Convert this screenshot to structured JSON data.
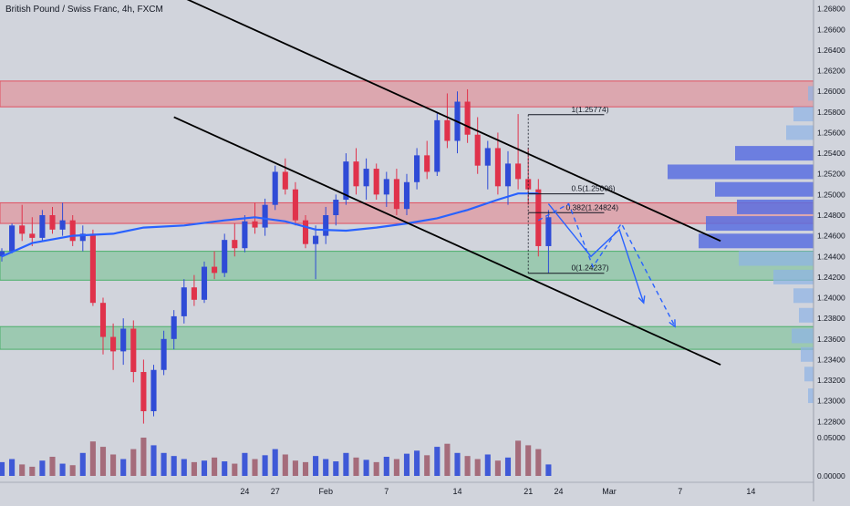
{
  "chart_data": {
    "type": "candlestick",
    "title": "British Pound / Swiss Franc, 4h, FXCM",
    "price_axis": {
      "ylim": [
        1.2275,
        1.2685
      ],
      "ticks": [
        "1.26800",
        "1.26600",
        "1.26400",
        "1.26200",
        "1.26000",
        "1.25800",
        "1.25600",
        "1.25400",
        "1.25200",
        "1.25000",
        "1.24800",
        "1.24600",
        "1.24400",
        "1.24200",
        "1.24000",
        "1.23800",
        "1.23600",
        "1.23400",
        "1.23200",
        "1.23000",
        "1.22800"
      ]
    },
    "volume_axis": {
      "ticks": [
        "0.05000",
        "0.00000"
      ]
    },
    "time_axis": {
      "labels": [
        {
          "t": 24,
          "label": "24"
        },
        {
          "t": 27,
          "label": "27"
        },
        {
          "t": 32,
          "label": "Feb"
        },
        {
          "t": 38,
          "label": "7"
        },
        {
          "t": 45,
          "label": "14"
        },
        {
          "t": 52,
          "label": "21"
        },
        {
          "t": 55,
          "label": "24"
        },
        {
          "t": 60,
          "label": "Mar"
        },
        {
          "t": 67,
          "label": "7"
        },
        {
          "t": 74,
          "label": "14"
        }
      ]
    },
    "zones": [
      {
        "kind": "supply",
        "from": 1.2585,
        "to": 1.261,
        "color": "#e28f96"
      },
      {
        "kind": "supply",
        "from": 1.2472,
        "to": 1.2492,
        "color": "#e28f96"
      },
      {
        "kind": "demand",
        "from": 1.2417,
        "to": 1.2445,
        "color": "#7fc39a"
      },
      {
        "kind": "demand",
        "from": 1.235,
        "to": 1.2372,
        "color": "#7fc39a"
      }
    ],
    "fibonacci": [
      {
        "level": "1",
        "price": 1.25774,
        "label": "1(1.25774)"
      },
      {
        "level": "0.5",
        "price": 1.25006,
        "label": "0.5(1.25006)"
      },
      {
        "level": "0.382",
        "price": 1.24824,
        "label": "0.382(1.24824)"
      },
      {
        "level": "0",
        "price": 1.24237,
        "label": "0(1.24237)"
      }
    ],
    "channel_lines": [
      {
        "t1": 17,
        "p1": 1.2695,
        "t2": 71,
        "p2": 1.2455
      },
      {
        "t1": 17,
        "p1": 1.2575,
        "t2": 71,
        "p2": 1.2335
      }
    ],
    "moving_average": [
      [
        0,
        1.244
      ],
      [
        3,
        1.2453
      ],
      [
        7,
        1.246
      ],
      [
        11,
        1.2462
      ],
      [
        14,
        1.2468
      ],
      [
        18,
        1.247
      ],
      [
        22,
        1.2475
      ],
      [
        25,
        1.2478
      ],
      [
        28,
        1.2474
      ],
      [
        31,
        1.2466
      ],
      [
        34,
        1.2465
      ],
      [
        37,
        1.2468
      ],
      [
        40,
        1.2472
      ],
      [
        43,
        1.2477
      ],
      [
        46,
        1.2485
      ],
      [
        49,
        1.2495
      ],
      [
        51,
        1.2501
      ],
      [
        53,
        1.2501
      ]
    ],
    "projections": [
      {
        "style": "solid",
        "points": [
          [
            54,
            1.2491
          ],
          [
            58.2,
            1.244
          ],
          [
            61,
            1.2466
          ],
          [
            63.4,
            1.2395
          ]
        ]
      },
      {
        "style": "dashed",
        "points": [
          [
            53,
            1.2475
          ],
          [
            56,
            1.2491
          ],
          [
            58.4,
            1.243
          ],
          [
            61.2,
            1.2472
          ],
          [
            66.5,
            1.2372
          ]
        ]
      }
    ],
    "candles": [
      [
        0,
        1.244,
        1.2448,
        1.2435,
        1.2445
      ],
      [
        1,
        1.2445,
        1.2472,
        1.2443,
        1.247
      ],
      [
        2,
        1.247,
        1.249,
        1.2455,
        1.2462
      ],
      [
        3,
        1.2462,
        1.2478,
        1.245,
        1.2458
      ],
      [
        4,
        1.2458,
        1.2485,
        1.2455,
        1.248
      ],
      [
        5,
        1.248,
        1.2488,
        1.2462,
        1.2466
      ],
      [
        6,
        1.2466,
        1.2492,
        1.246,
        1.2475
      ],
      [
        7,
        1.2475,
        1.248,
        1.245,
        1.2455
      ],
      [
        8,
        1.2455,
        1.247,
        1.2445,
        1.2462
      ],
      [
        9,
        1.2462,
        1.2466,
        1.2392,
        1.2395
      ],
      [
        10,
        1.2395,
        1.24,
        1.2345,
        1.2362
      ],
      [
        11,
        1.2362,
        1.2375,
        1.233,
        1.2348
      ],
      [
        12,
        1.2348,
        1.238,
        1.2335,
        1.237
      ],
      [
        13,
        1.237,
        1.2378,
        1.2318,
        1.2328
      ],
      [
        14,
        1.2328,
        1.234,
        1.2278,
        1.229
      ],
      [
        15,
        1.229,
        1.2335,
        1.2285,
        1.233
      ],
      [
        16,
        1.233,
        1.2368,
        1.2325,
        1.236
      ],
      [
        17,
        1.236,
        1.2388,
        1.235,
        1.2382
      ],
      [
        18,
        1.2382,
        1.2418,
        1.2375,
        1.241
      ],
      [
        19,
        1.241,
        1.2422,
        1.2392,
        1.2398
      ],
      [
        20,
        1.2398,
        1.2435,
        1.2395,
        1.243
      ],
      [
        21,
        1.243,
        1.2445,
        1.2418,
        1.2424
      ],
      [
        22,
        1.2424,
        1.2462,
        1.242,
        1.2456
      ],
      [
        23,
        1.2456,
        1.2472,
        1.244,
        1.2448
      ],
      [
        24,
        1.2448,
        1.248,
        1.2444,
        1.2474
      ],
      [
        25,
        1.2474,
        1.2492,
        1.2462,
        1.2468
      ],
      [
        26,
        1.2468,
        1.2496,
        1.246,
        1.249
      ],
      [
        27,
        1.249,
        1.2528,
        1.2485,
        1.2522
      ],
      [
        28,
        1.2522,
        1.2535,
        1.25,
        1.2505
      ],
      [
        29,
        1.2505,
        1.2512,
        1.247,
        1.2475
      ],
      [
        30,
        1.2475,
        1.248,
        1.2448,
        1.2452
      ],
      [
        31,
        1.2452,
        1.247,
        1.2418,
        1.246
      ],
      [
        32,
        1.246,
        1.2488,
        1.2452,
        1.248
      ],
      [
        33,
        1.248,
        1.25,
        1.247,
        1.2495
      ],
      [
        34,
        1.2495,
        1.254,
        1.249,
        1.2532
      ],
      [
        35,
        1.2532,
        1.2545,
        1.25,
        1.2508
      ],
      [
        36,
        1.2508,
        1.2535,
        1.2495,
        1.2525
      ],
      [
        37,
        1.2525,
        1.253,
        1.2495,
        1.25
      ],
      [
        38,
        1.25,
        1.2522,
        1.2488,
        1.2515
      ],
      [
        39,
        1.2515,
        1.2525,
        1.248,
        1.2486
      ],
      [
        40,
        1.2486,
        1.252,
        1.248,
        1.2512
      ],
      [
        41,
        1.2512,
        1.2545,
        1.2505,
        1.2538
      ],
      [
        42,
        1.2538,
        1.2552,
        1.2515,
        1.2522
      ],
      [
        43,
        1.2522,
        1.258,
        1.2518,
        1.2572
      ],
      [
        44,
        1.2572,
        1.2598,
        1.2545,
        1.2552
      ],
      [
        45,
        1.2552,
        1.26,
        1.254,
        1.259
      ],
      [
        46,
        1.259,
        1.2602,
        1.255,
        1.2558
      ],
      [
        47,
        1.2558,
        1.2575,
        1.252,
        1.2528
      ],
      [
        48,
        1.2528,
        1.2552,
        1.2505,
        1.2545
      ],
      [
        49,
        1.2545,
        1.256,
        1.25,
        1.2508
      ],
      [
        50,
        1.2508,
        1.2542,
        1.249,
        1.253
      ],
      [
        51,
        1.253,
        1.2578,
        1.2505,
        1.2515
      ],
      [
        52,
        1.2515,
        1.2545,
        1.249,
        1.2505
      ],
      [
        53,
        1.2505,
        1.2515,
        1.244,
        1.245
      ],
      [
        54,
        1.245,
        1.2485,
        1.2424,
        1.2478
      ]
    ],
    "volume": [
      0.018,
      0.022,
      0.015,
      0.012,
      0.02,
      0.025,
      0.016,
      0.014,
      0.03,
      0.045,
      0.038,
      0.028,
      0.022,
      0.035,
      0.05,
      0.04,
      0.03,
      0.026,
      0.022,
      0.018,
      0.02,
      0.024,
      0.019,
      0.016,
      0.03,
      0.022,
      0.027,
      0.035,
      0.028,
      0.02,
      0.018,
      0.026,
      0.022,
      0.019,
      0.03,
      0.024,
      0.021,
      0.018,
      0.025,
      0.022,
      0.029,
      0.033,
      0.027,
      0.038,
      0.042,
      0.03,
      0.026,
      0.022,
      0.028,
      0.02,
      0.024,
      0.046,
      0.04,
      0.035,
      0.015
    ],
    "volume_profile": [
      {
        "price": 1.2598,
        "width": 6,
        "hi": false
      },
      {
        "price": 1.2578,
        "width": 22,
        "hi": false
      },
      {
        "price": 1.256,
        "width": 30,
        "hi": false
      },
      {
        "price": 1.254,
        "width": 86,
        "hi": true
      },
      {
        "price": 1.2522,
        "width": 160,
        "hi": true
      },
      {
        "price": 1.2505,
        "width": 108,
        "hi": true
      },
      {
        "price": 1.2488,
        "width": 84,
        "hi": true
      },
      {
        "price": 1.2472,
        "width": 118,
        "hi": true
      },
      {
        "price": 1.2455,
        "width": 126,
        "hi": true
      },
      {
        "price": 1.2438,
        "width": 82,
        "hi": false
      },
      {
        "price": 1.242,
        "width": 44,
        "hi": false
      },
      {
        "price": 1.2402,
        "width": 22,
        "hi": false
      },
      {
        "price": 1.2383,
        "width": 16,
        "hi": false
      },
      {
        "price": 1.2363,
        "width": 24,
        "hi": false
      },
      {
        "price": 1.2345,
        "width": 14,
        "hi": false
      },
      {
        "price": 1.2326,
        "width": 10,
        "hi": false
      },
      {
        "price": 1.2305,
        "width": 6,
        "hi": false
      }
    ]
  }
}
